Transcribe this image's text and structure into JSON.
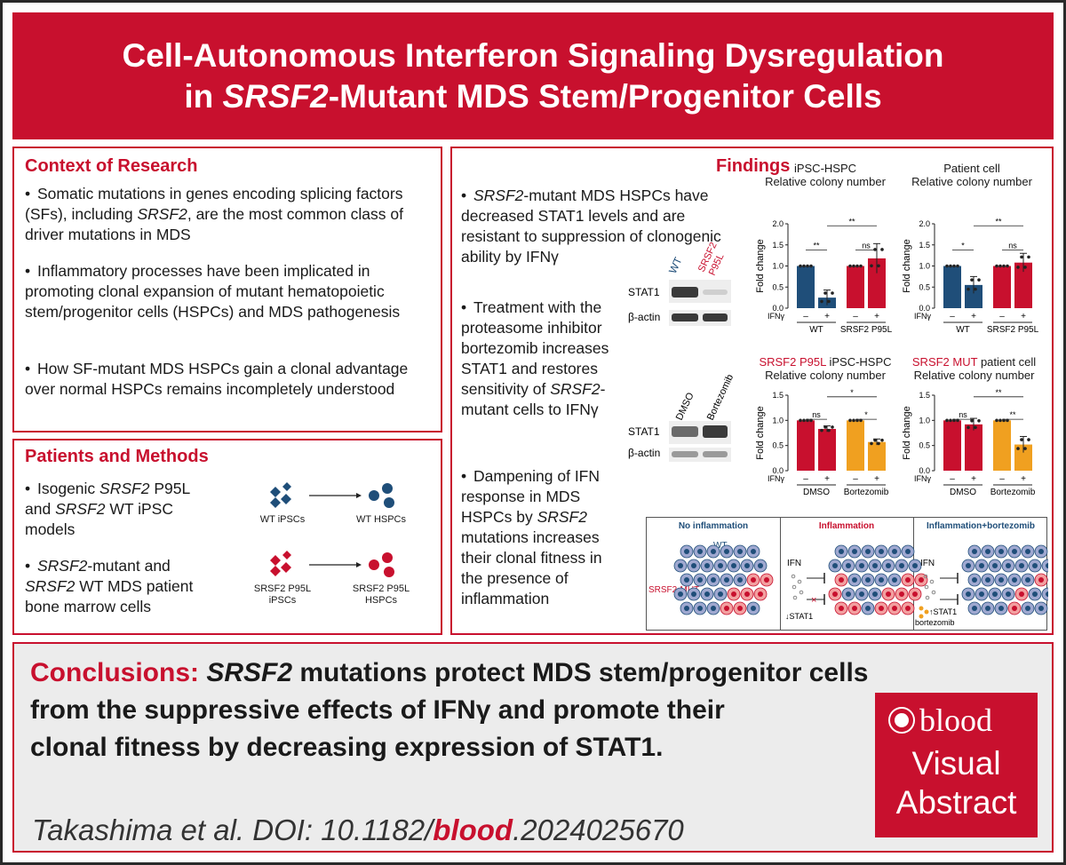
{
  "title": {
    "line1": "Cell-Autonomous Interferon Signaling Dysregulation",
    "line2_pre": "in ",
    "line2_gene": "SRSF2",
    "line2_post": "-Mutant MDS Stem/Progenitor Cells"
  },
  "context": {
    "heading": "Context of Research",
    "b1_a": "Somatic mutations in genes encoding splicing factors (SFs), including ",
    "b1_gene": "SRSF2",
    "b1_b": ", are the most common class of driver mutations in MDS",
    "b2": "Inflammatory processes have been implicated in promoting clonal expansion of mutant hematopoietic stem/progenitor cells (HSPCs) and MDS pathogenesis",
    "b3": "How SF-mutant MDS HSPCs gain a clonal advantage over normal HSPCs remains incompletely understood"
  },
  "methods": {
    "heading": "Patients and Methods",
    "b1_a": "Isogenic ",
    "b1_gene": "SRSF2",
    "b1_b": " P95L and ",
    "b1_gene2": "SRSF2",
    "b1_c": " WT iPSC models",
    "b2_gene": "SRSF2",
    "b2_a": "-mutant and ",
    "b2_gene2": "SRSF2",
    "b2_b": " WT MDS patient bone marrow cells",
    "wt_ipsc": "WT iPSCs",
    "wt_hspc": "WT HSPCs",
    "mut_ipsc_1": "SRSF2 P95L",
    "mut_ipsc_2": "iPSCs",
    "mut_hspc_1": "SRSF2 P95L",
    "mut_hspc_2": "HSPCs",
    "colors": {
      "wt": "#1f4e79",
      "mut": "#c8102e"
    }
  },
  "findings": {
    "heading": "Findings",
    "f1_gene": "SRSF2",
    "f1_text": "-mutant MDS HSPCs have decreased STAT1 levels and are resistant to suppression of clonogenic ability by IFNγ",
    "f2_a": "Treatment with the proteasome inhibitor bortezomib increases STAT1 and restores sensitivity of ",
    "f2_gene": "SRSF2",
    "f2_b": "-mutant cells to IFNγ",
    "f3_a": "Dampening of IFN response in MDS HSPCs by ",
    "f3_gene": "SRSF2",
    "f3_b": " mutations increases their clonal fitness in the presence of inflammation",
    "blot1": {
      "lane1": "WT",
      "lane2_1": "SRSF2",
      "lane2_2": "P95L",
      "row1": "STAT1",
      "row2": "β-actin"
    },
    "blot2": {
      "lane1": "DMSO",
      "lane2": "Bortezomib",
      "row1": "STAT1",
      "row2": "β-actin"
    },
    "schematic": {
      "p1_title": "No inflammation",
      "p2_title": "Inflammation",
      "p3_title": "Inflammation+bortezomib",
      "wt": "WT",
      "mut": "SRSF2-MUT",
      "ifn": "IFN",
      "stat1_down": "↓STAT1",
      "stat1_up": "↑STAT1",
      "bortezomib": "bortezomib",
      "x": "×"
    }
  },
  "conclusion": {
    "label": "Conclusions: ",
    "gene": "SRSF2",
    "line1": " mutations protect MDS stem/progenitor cells",
    "line2": "from the suppressive effects of IFNγ and promote their",
    "line3": "clonal fitness by decreasing expression of STAT1."
  },
  "citation": {
    "pre": "Takashima et al. DOI: 10.1182/",
    "journal": "blood",
    "post": ".2024025670"
  },
  "logo": {
    "brand": "blood",
    "line1": "Visual",
    "line2": "Abstract"
  },
  "chart_data": [
    {
      "type": "bar",
      "title": "iPSC-HSPC",
      "subtitle": "Relative colony number",
      "ylabel": "Fold change",
      "ylim": [
        0,
        2.0
      ],
      "yticks": [
        "0.0",
        "0.5",
        "1.0",
        "1.5",
        "2.0"
      ],
      "ifn_label": "IFNγ",
      "treatments": [
        "–",
        "+",
        "–",
        "+"
      ],
      "groups": [
        "WT",
        "SRSF2 P95L"
      ],
      "values": [
        1.0,
        0.25,
        1.0,
        1.18
      ],
      "errors": [
        0.0,
        0.18,
        0.0,
        0.35
      ],
      "colors": [
        "#1f4e79",
        "#1f4e79",
        "#c8102e",
        "#c8102e"
      ],
      "sig": [
        "**",
        "ns",
        "**"
      ]
    },
    {
      "type": "bar",
      "title": "Patient cell",
      "subtitle": "Relative colony number",
      "ylabel": "Fold change",
      "ylim": [
        0,
        2.0
      ],
      "yticks": [
        "0.0",
        "0.5",
        "1.0",
        "1.5",
        "2.0"
      ],
      "ifn_label": "IFNγ",
      "treatments": [
        "–",
        "+",
        "–",
        "+"
      ],
      "groups": [
        "WT",
        "SRSF2 P95L"
      ],
      "values": [
        1.0,
        0.55,
        1.0,
        1.08
      ],
      "errors": [
        0.0,
        0.2,
        0.0,
        0.22
      ],
      "colors": [
        "#1f4e79",
        "#1f4e79",
        "#c8102e",
        "#c8102e"
      ],
      "sig": [
        "*",
        "ns",
        "**"
      ]
    },
    {
      "type": "bar",
      "title_red": "SRSF2 P95L",
      "title": " iPSC-HSPC",
      "subtitle": "Relative colony number",
      "ylabel": "Fold change",
      "ylim": [
        0,
        1.5
      ],
      "yticks": [
        "0.0",
        "0.5",
        "1.0",
        "1.5"
      ],
      "ifn_label": "IFNγ",
      "treatments": [
        "–",
        "+",
        "–",
        "+"
      ],
      "groups": [
        "DMSO",
        "Bortezomib"
      ],
      "values": [
        1.0,
        0.83,
        1.0,
        0.57
      ],
      "errors": [
        0.0,
        0.06,
        0.0,
        0.06
      ],
      "colors": [
        "#c8102e",
        "#c8102e",
        "#f0a020",
        "#f0a020"
      ],
      "sig": [
        "ns",
        "*",
        "*"
      ]
    },
    {
      "type": "bar",
      "title_red": "SRSF2 MUT",
      "title": " patient cell",
      "subtitle": "Relative colony number",
      "ylabel": "Fold change",
      "ylim": [
        0,
        1.5
      ],
      "yticks": [
        "0.0",
        "0.5",
        "1.0",
        "1.5"
      ],
      "ifn_label": "IFNγ",
      "treatments": [
        "–",
        "+",
        "–",
        "+"
      ],
      "groups": [
        "DMSO",
        "Bortezomib"
      ],
      "values": [
        1.0,
        0.92,
        1.0,
        0.52
      ],
      "errors": [
        0.0,
        0.12,
        0.0,
        0.16
      ],
      "colors": [
        "#c8102e",
        "#c8102e",
        "#f0a020",
        "#f0a020"
      ],
      "sig": [
        "ns",
        "**",
        "**"
      ]
    }
  ]
}
